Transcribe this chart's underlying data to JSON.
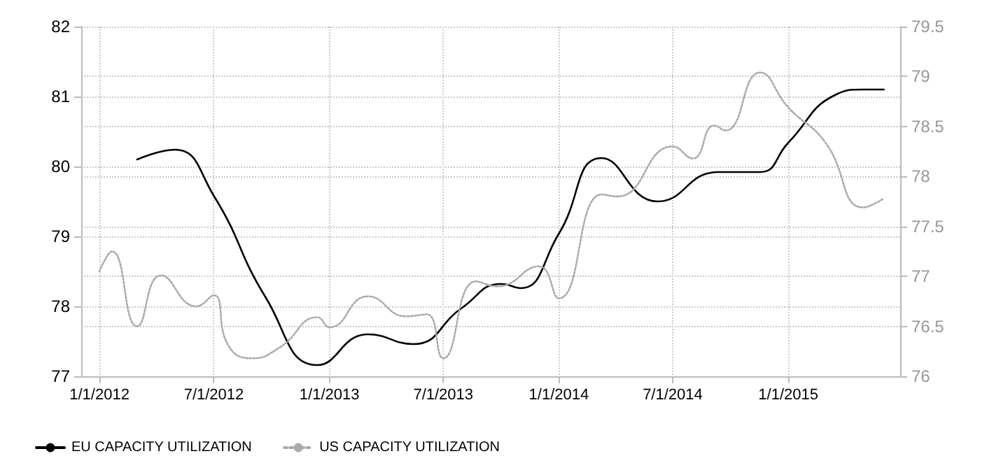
{
  "chart_data": {
    "type": "line",
    "xlim": [
      "2011-12-03",
      "2015-06-28"
    ],
    "xticks": [
      {
        "value": "2012-01-01",
        "label": "1/1/2012"
      },
      {
        "value": "2012-07-01",
        "label": "7/1/2012"
      },
      {
        "value": "2013-01-01",
        "label": "1/1/2013"
      },
      {
        "value": "2013-07-01",
        "label": "7/1/2013"
      },
      {
        "value": "2014-01-01",
        "label": "1/1/2014"
      },
      {
        "value": "2014-07-01",
        "label": "7/1/2014"
      },
      {
        "value": "2015-01-01",
        "label": "1/1/2015"
      }
    ],
    "ylim": [
      77,
      82
    ],
    "yticks": [
      77,
      78,
      79,
      80,
      81,
      82
    ],
    "y2lim": [
      76,
      79.5
    ],
    "y2ticks": [
      76,
      76.5,
      77,
      77.5,
      78,
      78.5,
      79,
      79.5
    ],
    "grid": true,
    "legend": "bottom left",
    "marker": "none",
    "series": [
      {
        "name": "EU CAPACITY UTILIZATION",
        "color": "#000000",
        "line_style": "solid",
        "x": [
          "2012-03-01",
          "2012-04-30",
          "2012-07-01",
          "2012-09-22",
          "2012-12-13",
          "2013-03-03",
          "2013-05-14",
          "2013-07-31",
          "2013-10-01",
          "2013-11-01",
          "2014-01-01",
          "2014-03-10",
          "2014-06-07",
          "2014-09-11",
          "2014-11-17",
          "2015-01-01",
          "2015-03-16",
          "2015-04-30",
          "2015-06-02"
        ],
        "values": [
          80.1,
          80.24,
          79.58,
          78.12,
          77.16,
          77.6,
          77.46,
          77.98,
          78.32,
          78.26,
          79.04,
          80.12,
          79.5,
          79.92,
          79.92,
          80.34,
          81.02,
          81.1,
          81.1
        ]
      },
      {
        "name": "US CAPACITY UTILIZATION",
        "color": "#aaaaaa",
        "line_style": "dotted",
        "axis": "y2",
        "x": [
          "2012-01-01",
          "2012-01-21",
          "2012-03-01",
          "2012-04-08",
          "2012-06-03",
          "2012-07-01",
          "2012-07-24",
          "2012-08-31",
          "2012-10-14",
          "2012-12-13",
          "2013-01-01",
          "2013-03-03",
          "2013-05-03",
          "2013-06-05",
          "2013-07-01",
          "2013-08-22",
          "2013-09-25",
          "2013-11-30",
          "2014-01-01",
          "2014-03-10",
          "2014-04-04",
          "2014-07-01",
          "2014-08-02",
          "2014-09-05",
          "2014-09-23",
          "2014-11-17",
          "2015-01-01",
          "2015-03-01",
          "2015-04-30",
          "2015-06-02"
        ],
        "values": [
          77.05,
          77.25,
          76.5,
          77.01,
          76.7,
          76.81,
          76.31,
          76.18,
          76.29,
          76.59,
          76.49,
          76.8,
          76.6,
          76.62,
          76.18,
          76.95,
          76.9,
          77.1,
          76.78,
          77.82,
          77.8,
          78.3,
          78.18,
          78.51,
          78.46,
          79.04,
          78.69,
          78.34,
          77.69,
          77.78
        ]
      }
    ]
  }
}
